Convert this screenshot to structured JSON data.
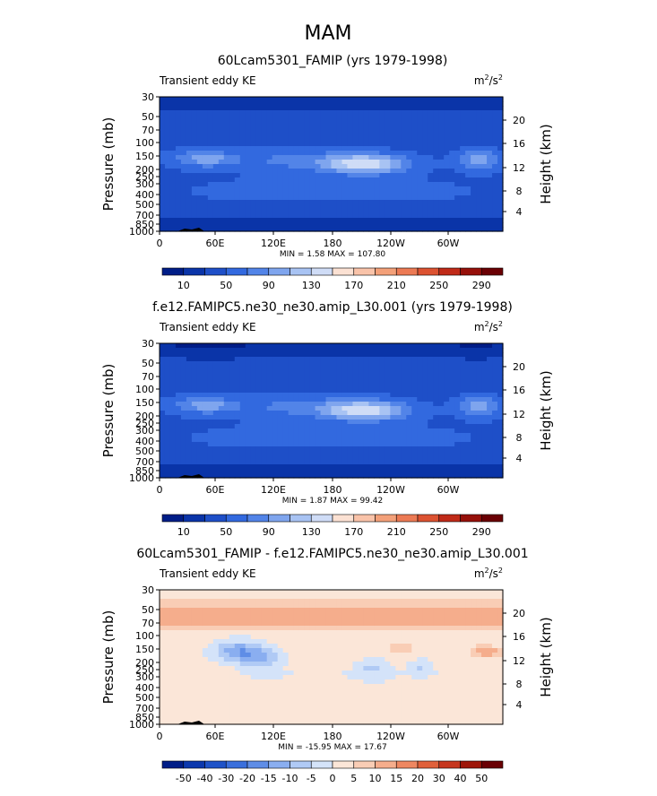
{
  "main_title": "MAM",
  "colors": {
    "seq": [
      "#001d87",
      "#0a34a8",
      "#1e4fc8",
      "#3269df",
      "#5284e8",
      "#7fa5ee",
      "#a8c3f3",
      "#cfdcf6",
      "#fbe1d3",
      "#f9c3a9",
      "#f3a079",
      "#ec7a54",
      "#dc5231",
      "#c02a18",
      "#96100a",
      "#6a0004"
    ],
    "diff": [
      "#001d87",
      "#0c38ad",
      "#1f53c8",
      "#3a6fdc",
      "#5f8de6",
      "#8aaef0",
      "#b0caf5",
      "#d4e3f9",
      "#fbe6d8",
      "#f9cdb5",
      "#f5ad8c",
      "#ee8761",
      "#e0603a",
      "#c6361e",
      "#9e1609",
      "#6a0004"
    ]
  },
  "chart_data": [
    {
      "type": "heatmap",
      "title": "60Lcam5301_FAMIP (yrs 1979-1998)",
      "left_label": "Transient eddy KE",
      "units": {
        "base": "m",
        "exp1": "2",
        "mid": "/s",
        "exp2": "2"
      },
      "ylabel": "Pressure (mb)",
      "ylabel_right": "Height (km)",
      "pressure_ticks": [
        "30",
        "50",
        "70",
        "100",
        "150",
        "200",
        "250",
        "300",
        "400",
        "500",
        "700",
        "850",
        "1000"
      ],
      "height_ticks": [
        "20",
        "16",
        "12",
        "8",
        "4"
      ],
      "x_ticks": [
        "0",
        "60E",
        "120E",
        "180",
        "120W",
        "60W"
      ],
      "stats": "MIN =    1.58   MAX =  107.80",
      "colorbar_labels": [
        "10",
        "50",
        "90",
        "130",
        "170",
        "210",
        "250",
        "290"
      ]
    },
    {
      "type": "heatmap",
      "title": "f.e12.FAMIPC5.ne30_ne30.amip_L30.001 (yrs 1979-1998)",
      "left_label": "Transient eddy KE",
      "units": {
        "base": "m",
        "exp1": "2",
        "mid": "/s",
        "exp2": "2"
      },
      "ylabel": "Pressure (mb)",
      "ylabel_right": "Height (km)",
      "pressure_ticks": [
        "30",
        "50",
        "70",
        "100",
        "150",
        "200",
        "250",
        "300",
        "400",
        "500",
        "700",
        "850",
        "1000"
      ],
      "height_ticks": [
        "20",
        "16",
        "12",
        "8",
        "4"
      ],
      "x_ticks": [
        "0",
        "60E",
        "120E",
        "180",
        "120W",
        "60W"
      ],
      "stats": "MIN =    1.87   MAX =   99.42",
      "colorbar_labels": [
        "10",
        "50",
        "90",
        "130",
        "170",
        "210",
        "250",
        "290"
      ]
    },
    {
      "type": "heatmap",
      "title": "60Lcam5301_FAMIP - f.e12.FAMIPC5.ne30_ne30.amip_L30.001",
      "left_label": "Transient eddy KE",
      "units": {
        "base": "m",
        "exp1": "2",
        "mid": "/s",
        "exp2": "2"
      },
      "ylabel": "Pressure (mb)",
      "ylabel_right": "Height (km)",
      "pressure_ticks": [
        "30",
        "50",
        "70",
        "100",
        "150",
        "200",
        "250",
        "300",
        "400",
        "500",
        "700",
        "850",
        "1000"
      ],
      "height_ticks": [
        "20",
        "16",
        "12",
        "8",
        "4"
      ],
      "x_ticks": [
        "0",
        "60E",
        "120E",
        "180",
        "120W",
        "60W"
      ],
      "stats": "MIN =  -15.95   MAX =   17.67",
      "colorbar_labels": [
        "-50",
        "-40",
        "-30",
        "-20",
        "-15",
        "-10",
        "-5",
        "0",
        "5",
        "10",
        "15",
        "20",
        "30",
        "40",
        "50"
      ]
    }
  ]
}
